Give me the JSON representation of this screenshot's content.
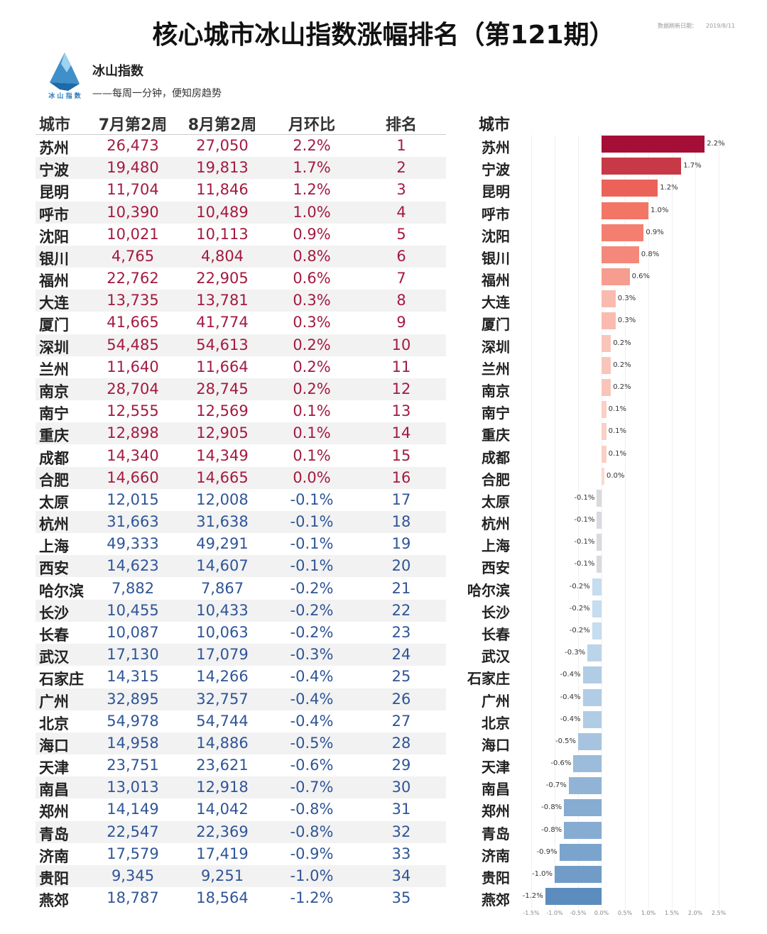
{
  "title": "核心城市冰山指数涨幅排名（第121期）",
  "date_label": "数据刷新日期：",
  "date": "2019/8/11",
  "brand": {
    "name": "冰山指数",
    "logo_text": "冰 山 指 数",
    "slogan": "——每周一分钟，便知房趋势"
  },
  "table": {
    "headers": [
      "城市",
      "7月第2周",
      "8月第2周",
      "月环比",
      "排名"
    ],
    "colors": {
      "positive": "#a31a40",
      "negative": "#2f5597"
    },
    "rows": [
      [
        "苏州",
        "26,473",
        "27,050",
        "2.2%",
        "1"
      ],
      [
        "宁波",
        "19,480",
        "19,813",
        "1.7%",
        "2"
      ],
      [
        "昆明",
        "11,704",
        "11,846",
        "1.2%",
        "3"
      ],
      [
        "呼市",
        "10,390",
        "10,489",
        "1.0%",
        "4"
      ],
      [
        "沈阳",
        "10,021",
        "10,113",
        "0.9%",
        "5"
      ],
      [
        "银川",
        "4,765",
        "4,804",
        "0.8%",
        "6"
      ],
      [
        "福州",
        "22,762",
        "22,905",
        "0.6%",
        "7"
      ],
      [
        "大连",
        "13,735",
        "13,781",
        "0.3%",
        "8"
      ],
      [
        "厦门",
        "41,665",
        "41,774",
        "0.3%",
        "9"
      ],
      [
        "深圳",
        "54,485",
        "54,613",
        "0.2%",
        "10"
      ],
      [
        "兰州",
        "11,640",
        "11,664",
        "0.2%",
        "11"
      ],
      [
        "南京",
        "28,704",
        "28,745",
        "0.2%",
        "12"
      ],
      [
        "南宁",
        "12,555",
        "12,569",
        "0.1%",
        "13"
      ],
      [
        "重庆",
        "12,898",
        "12,905",
        "0.1%",
        "14"
      ],
      [
        "成都",
        "14,340",
        "14,349",
        "0.1%",
        "15"
      ],
      [
        "合肥",
        "14,660",
        "14,665",
        "0.0%",
        "16"
      ],
      [
        "太原",
        "12,015",
        "12,008",
        "-0.1%",
        "17"
      ],
      [
        "杭州",
        "31,663",
        "31,638",
        "-0.1%",
        "18"
      ],
      [
        "上海",
        "49,333",
        "49,291",
        "-0.1%",
        "19"
      ],
      [
        "西安",
        "14,623",
        "14,607",
        "-0.1%",
        "20"
      ],
      [
        "哈尔滨",
        "7,882",
        "7,867",
        "-0.2%",
        "21"
      ],
      [
        "长沙",
        "10,455",
        "10,433",
        "-0.2%",
        "22"
      ],
      [
        "长春",
        "10,087",
        "10,063",
        "-0.2%",
        "23"
      ],
      [
        "武汉",
        "17,130",
        "17,079",
        "-0.3%",
        "24"
      ],
      [
        "石家庄",
        "14,315",
        "14,266",
        "-0.4%",
        "25"
      ],
      [
        "广州",
        "32,895",
        "32,757",
        "-0.4%",
        "26"
      ],
      [
        "北京",
        "54,978",
        "54,744",
        "-0.4%",
        "27"
      ],
      [
        "海口",
        "14,958",
        "14,886",
        "-0.5%",
        "28"
      ],
      [
        "天津",
        "23,751",
        "23,621",
        "-0.6%",
        "29"
      ],
      [
        "南昌",
        "13,013",
        "12,918",
        "-0.7%",
        "30"
      ],
      [
        "郑州",
        "14,149",
        "14,042",
        "-0.8%",
        "31"
      ],
      [
        "青岛",
        "22,547",
        "22,369",
        "-0.8%",
        "32"
      ],
      [
        "济南",
        "17,579",
        "17,419",
        "-0.9%",
        "33"
      ],
      [
        "贵阳",
        "9,345",
        "9,251",
        "-1.0%",
        "34"
      ],
      [
        "燕郊",
        "18,787",
        "18,564",
        "-1.2%",
        "35"
      ]
    ]
  },
  "chart_data": {
    "type": "bar",
    "orientation": "horizontal",
    "category_header": "城市",
    "categories": [
      "苏州",
      "宁波",
      "昆明",
      "呼市",
      "沈阳",
      "银川",
      "福州",
      "大连",
      "厦门",
      "深圳",
      "兰州",
      "南京",
      "南宁",
      "重庆",
      "成都",
      "合肥",
      "太原",
      "杭州",
      "上海",
      "西安",
      "哈尔滨",
      "长沙",
      "长春",
      "武汉",
      "石家庄",
      "广州",
      "北京",
      "海口",
      "天津",
      "南昌",
      "郑州",
      "青岛",
      "济南",
      "贵阳",
      "燕郊"
    ],
    "values": [
      2.2,
      1.7,
      1.2,
      1.0,
      0.9,
      0.8,
      0.6,
      0.3,
      0.3,
      0.2,
      0.2,
      0.2,
      0.1,
      0.1,
      0.1,
      0.0,
      -0.1,
      -0.1,
      -0.1,
      -0.1,
      -0.2,
      -0.2,
      -0.2,
      -0.3,
      -0.4,
      -0.4,
      -0.4,
      -0.5,
      -0.6,
      -0.7,
      -0.8,
      -0.8,
      -0.9,
      -1.0,
      -1.2
    ],
    "data_labels": [
      "2.2%",
      "1.7%",
      "1.2%",
      "1.0%",
      "0.9%",
      "0.8%",
      "0.6%",
      "0.3%",
      "0.3%",
      "0.2%",
      "0.2%",
      "0.2%",
      "0.1%",
      "0.1%",
      "0.1%",
      "0.0%",
      "-0.1%",
      "-0.1%",
      "-0.1%",
      "-0.1%",
      "-0.2%",
      "-0.2%",
      "-0.2%",
      "-0.3%",
      "-0.4%",
      "-0.4%",
      "-0.4%",
      "-0.5%",
      "-0.6%",
      "-0.7%",
      "-0.8%",
      "-0.8%",
      "-0.9%",
      "-1.0%",
      "-1.2%"
    ],
    "xlim": [
      -1.5,
      2.5
    ],
    "xticks": [
      "-1.5%",
      "-1.0%",
      "-0.5%",
      "0.0%",
      "0.5%",
      "1.0%",
      "1.5%",
      "2.0%",
      "2.5%"
    ],
    "grid": true,
    "colors": {
      "pos_high": "#a50f37",
      "pos_mid": "#f26b5b",
      "pos_low": "#fbd9d0",
      "neutral": "#d9d9de",
      "neg_low": "#c6dcef",
      "neg_high": "#5b8cbd"
    }
  }
}
